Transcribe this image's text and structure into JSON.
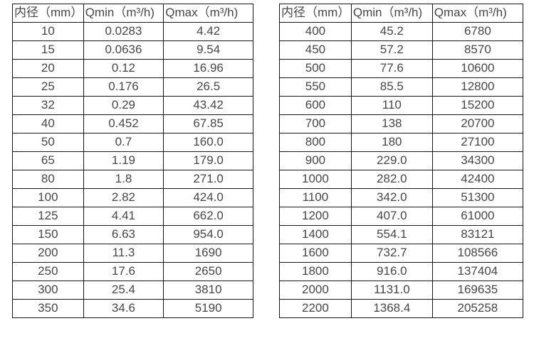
{
  "colors": {
    "background": "#ffffff",
    "table_border": "#161616",
    "text": "#474747"
  },
  "chart_data": [
    {
      "type": "table",
      "title": "",
      "columns": [
        "内径（mm）",
        "Qmin（m³/h)",
        "Qmax（m³/h)"
      ],
      "rows": [
        [
          "10",
          "0.0283",
          "4.42"
        ],
        [
          "15",
          "0.0636",
          "9.54"
        ],
        [
          "20",
          "0.12",
          "16.96"
        ],
        [
          "25",
          "0.176",
          "26.5"
        ],
        [
          "32",
          "0.29",
          "43.42"
        ],
        [
          "40",
          "0.452",
          "67.85"
        ],
        [
          "50",
          "0.7",
          "160.0"
        ],
        [
          "65",
          "1.19",
          "179.0"
        ],
        [
          "80",
          "1.8",
          "271.0"
        ],
        [
          "100",
          "2.82",
          "424.0"
        ],
        [
          "125",
          "4.41",
          "662.0"
        ],
        [
          "150",
          "6.63",
          "954.0"
        ],
        [
          "200",
          "11.3",
          "1690"
        ],
        [
          "250",
          "17.6",
          "2650"
        ],
        [
          "300",
          "25.4",
          "3810"
        ],
        [
          "350",
          "34.6",
          "5190"
        ]
      ]
    },
    {
      "type": "table",
      "title": "",
      "columns": [
        "内径（mm）",
        "Qmin（m³/h)",
        "Qmax（m³/h)"
      ],
      "rows": [
        [
          "400",
          "45.2",
          "6780"
        ],
        [
          "450",
          "57.2",
          "8570"
        ],
        [
          "500",
          "77.6",
          "10600"
        ],
        [
          "550",
          "85.5",
          "12800"
        ],
        [
          "600",
          "110",
          "15200"
        ],
        [
          "700",
          "138",
          "20700"
        ],
        [
          "800",
          "180",
          "27100"
        ],
        [
          "900",
          "229.0",
          "34300"
        ],
        [
          "1000",
          "282.0",
          "42400"
        ],
        [
          "1100",
          "342.0",
          "51300"
        ],
        [
          "1200",
          "407.0",
          "61000"
        ],
        [
          "1400",
          "554.1",
          "83121"
        ],
        [
          "1600",
          "732.7",
          "108566"
        ],
        [
          "1800",
          "916.0",
          "137404"
        ],
        [
          "2000",
          "1131.0",
          "169635"
        ],
        [
          "2200",
          "1368.4",
          "205258"
        ]
      ]
    }
  ]
}
